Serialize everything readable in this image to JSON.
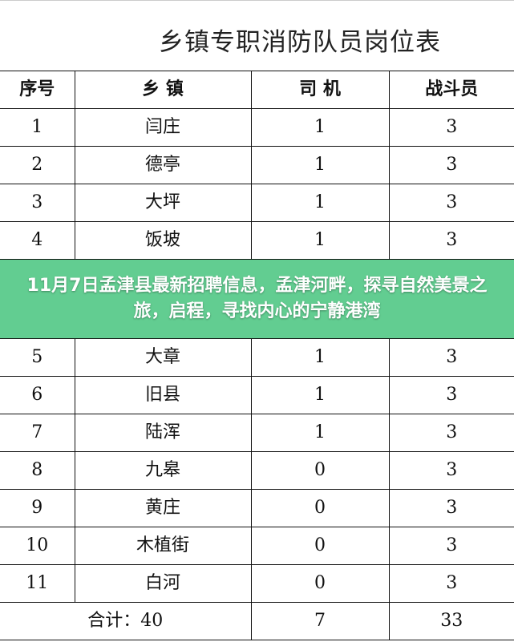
{
  "title": "乡镇专职消防队员岗位表",
  "headers": [
    "序号",
    "乡 镇",
    "司 机",
    "战斗员"
  ],
  "rows": [
    [
      "1",
      "闫庄",
      "1",
      "3"
    ],
    [
      "2",
      "德亭",
      "1",
      "3"
    ],
    [
      "3",
      "大坪",
      "1",
      "3"
    ],
    [
      "4",
      "饭坡",
      "1",
      "3"
    ],
    [
      "5",
      "大章",
      "1",
      "3"
    ],
    [
      "6",
      "旧县",
      "1",
      "3"
    ],
    [
      "7",
      "陆浑",
      "1",
      "3"
    ],
    [
      "8",
      "九皋",
      "0",
      "3"
    ],
    [
      "9",
      "黄庄",
      "0",
      "3"
    ],
    [
      "10",
      "木植街",
      "0",
      "3"
    ],
    [
      "11",
      "白河",
      "0",
      "3"
    ]
  ],
  "total": {
    "label": "合计：40",
    "drivers": "7",
    "fighters": "33"
  },
  "banner": {
    "text": "11月7日孟津县最新招聘信息，孟津河畔，探寻自然美景之旅，启程，寻找内心的宁静港湾",
    "color": "#62cd91"
  }
}
